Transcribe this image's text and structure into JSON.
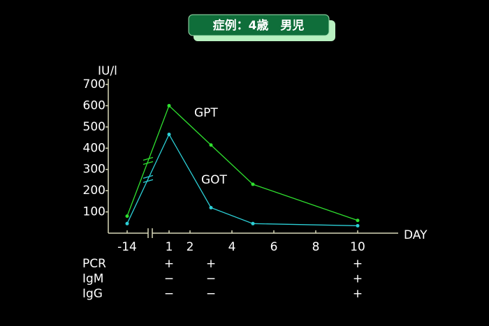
{
  "chart_data": {
    "type": "line",
    "title": "症例：4歳　男児",
    "y_label": "IU/l",
    "x_label": "DAY",
    "x": [
      -14,
      1,
      3,
      5,
      10
    ],
    "x_break": [
      -14,
      1
    ],
    "series": [
      {
        "name": "GPT",
        "color": "#2fe02f",
        "values": [
          80,
          600,
          415,
          230,
          60
        ]
      },
      {
        "name": "GOT",
        "color": "#2ccfd6",
        "values": [
          45,
          465,
          120,
          45,
          35
        ]
      }
    ],
    "xlim": [
      -15,
      12
    ],
    "xticks": [
      -14,
      1,
      2,
      4,
      6,
      8,
      10
    ],
    "ylim": [
      0,
      700
    ],
    "yticks": [
      100,
      200,
      300,
      400,
      500,
      600,
      700
    ],
    "table": {
      "days": [
        1,
        3,
        10
      ],
      "rows": [
        {
          "label": "PCR",
          "marks": [
            "+",
            "+",
            "+"
          ]
        },
        {
          "label": "IgM",
          "marks": [
            "−",
            "−",
            "+"
          ]
        },
        {
          "label": "IgG",
          "marks": [
            "−",
            "−",
            "+"
          ]
        }
      ]
    }
  }
}
